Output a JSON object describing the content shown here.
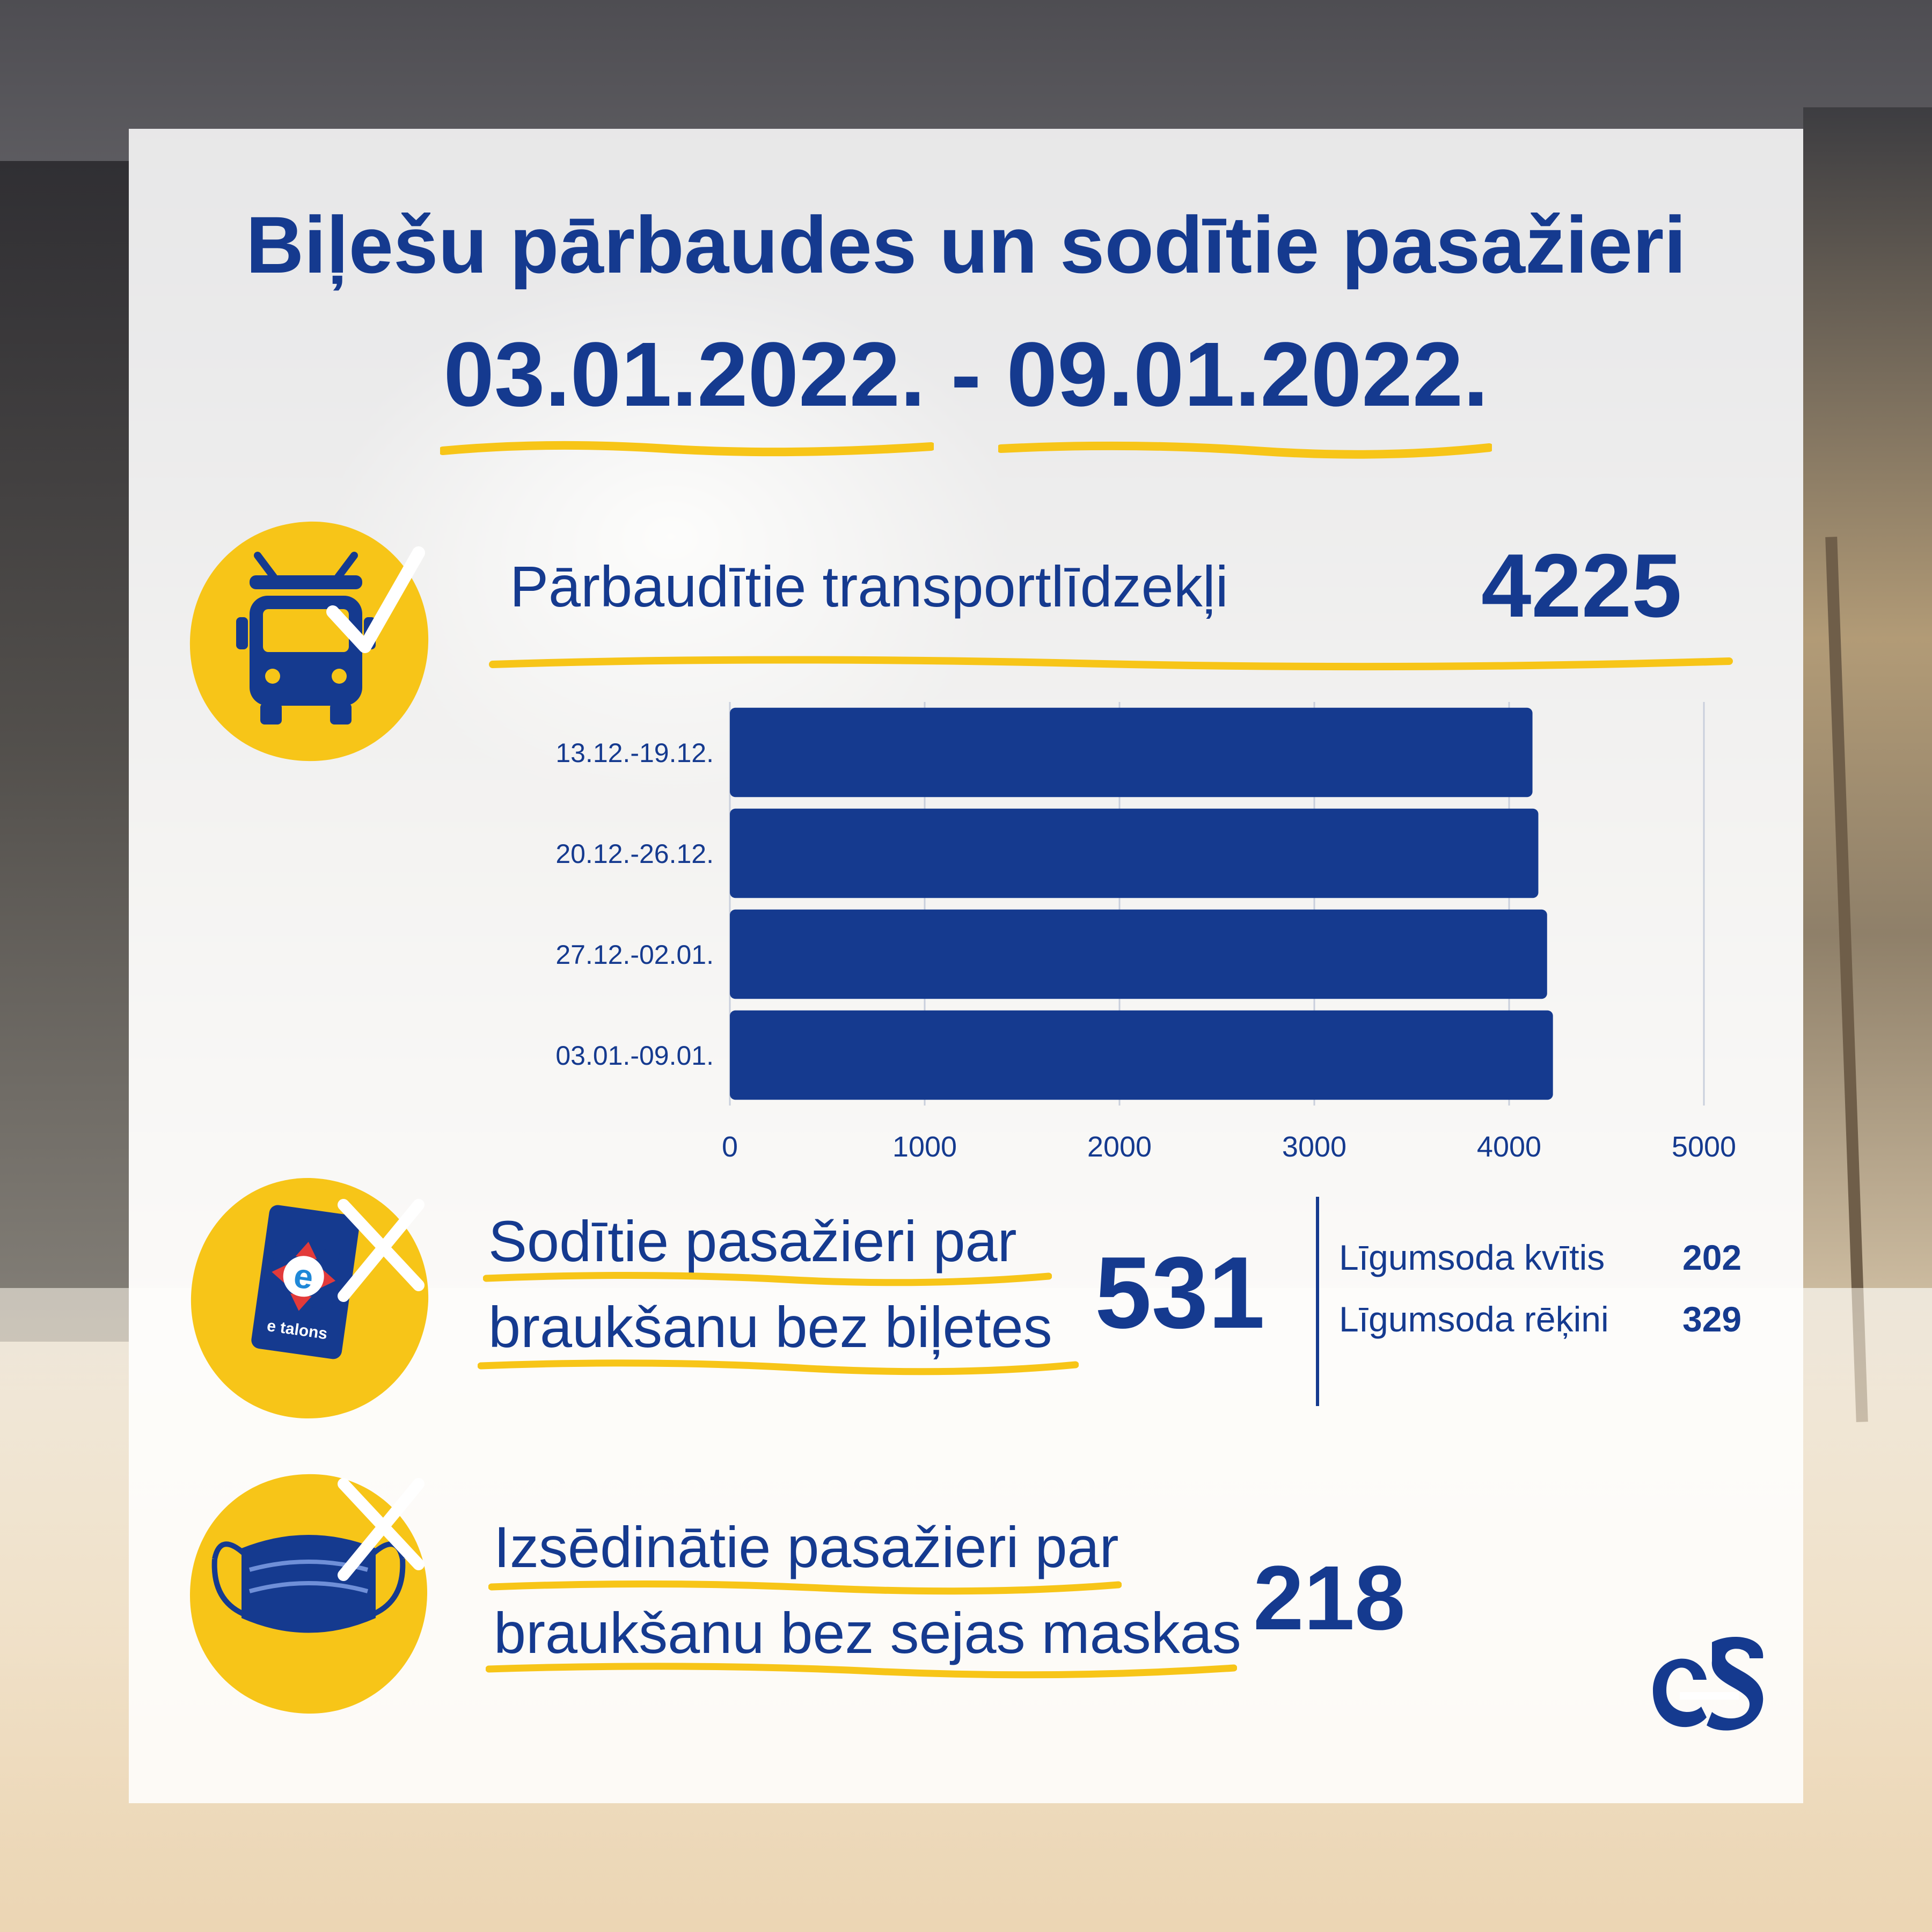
{
  "header": {
    "title": "Biļešu pārbaudes un sodītie pasažieri",
    "period_start": "03.01.2022.",
    "period_separator": "-",
    "period_end": "09.01.2022."
  },
  "vehicles_checked": {
    "label": "Pārbaudītie transportlīdzekļi",
    "value": "4225",
    "icon": "trolleybus-check-icon"
  },
  "chart_data": {
    "type": "bar",
    "orientation": "horizontal",
    "title": "",
    "xlabel": "",
    "ylabel": "",
    "categories": [
      "13.12.-19.12.",
      "20.12.-26.12.",
      "27.12.-02.01.",
      "03.01.-09.01."
    ],
    "values": [
      4120,
      4150,
      4195,
      4225
    ],
    "xlim": [
      0,
      5000
    ],
    "xticks": [
      0,
      1000,
      2000,
      3000,
      4000,
      5000
    ],
    "grid": "vertical",
    "bar_color": "#153a8f"
  },
  "fined_passengers": {
    "label_line1": "Sodītie pasažieri par",
    "label_line2": "braukšanu bez biļetes",
    "value": "531",
    "icon": "etalons-card-cross-icon",
    "card_text": "e talons",
    "breakdown": [
      {
        "label": "Līgumsoda kvītis",
        "value": "202"
      },
      {
        "label": "Līgumsoda rēķini",
        "value": "329"
      }
    ]
  },
  "removed_passengers": {
    "label_line1": "Izsēdinātie pasažieri par",
    "label_line2": "braukšanu bez sejas maskas",
    "value": "218",
    "icon": "face-mask-cross-icon"
  },
  "logo": {
    "name": "rigas-satiksme-logo-icon"
  },
  "colors": {
    "primary": "#153a8f",
    "accent": "#f7c518"
  }
}
